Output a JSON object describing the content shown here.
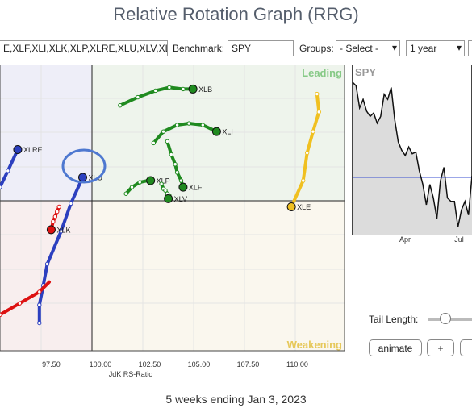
{
  "title": "Relative Rotation Graph (RRG)",
  "controls": {
    "symbols_value": "E,XLF,XLI,XLK,XLP,XLRE,XLU,XLV,XL",
    "benchmark_label": "Benchmark:",
    "benchmark_value": "SPY",
    "groups_label": "Groups:",
    "groups_value": "- Select -",
    "period_value": "1 year"
  },
  "quadrants": {
    "leading": "Leading",
    "weakening": "Weakening"
  },
  "chart_data": {
    "type": "scatter",
    "xlabel": "JdK RS-Ratio",
    "ylabel": "",
    "xlim": [
      94.9,
      112.4
    ],
    "ylim": [
      95.5,
      104.25
    ],
    "center": [
      100,
      100
    ],
    "xticks": [
      "97.50",
      "100.00",
      "102.50",
      "105.00",
      "107.50",
      "110.00"
    ],
    "series": [
      {
        "name": "XLB",
        "color": "#1f8a1f",
        "tail": [
          [
            101.0,
            103.0
          ],
          [
            101.9,
            103.25
          ],
          [
            102.8,
            103.45
          ],
          [
            103.5,
            103.55
          ],
          [
            104.2,
            103.5
          ],
          [
            104.7,
            103.5
          ]
        ]
      },
      {
        "name": "XLI",
        "color": "#1f8a1f",
        "tail": [
          [
            102.7,
            101.85
          ],
          [
            103.2,
            102.2
          ],
          [
            103.9,
            102.4
          ],
          [
            104.5,
            102.45
          ],
          [
            105.2,
            102.4
          ],
          [
            105.9,
            102.2
          ]
        ]
      },
      {
        "name": "XLF",
        "color": "#1f8a1f",
        "tail": [
          [
            103.4,
            101.9
          ],
          [
            103.6,
            101.5
          ],
          [
            103.8,
            101.2
          ],
          [
            103.9,
            100.95
          ],
          [
            104.1,
            100.7
          ],
          [
            104.2,
            100.5
          ]
        ]
      },
      {
        "name": "XLP",
        "color": "#1f8a1f",
        "tail": [
          [
            101.3,
            100.3
          ],
          [
            101.6,
            100.5
          ],
          [
            102.0,
            100.65
          ],
          [
            102.4,
            100.7
          ],
          [
            102.5,
            100.7
          ],
          [
            102.55,
            100.7
          ]
        ]
      },
      {
        "name": "XLV",
        "color": "#1f8a1f",
        "tail": [
          [
            103.1,
            100.6
          ],
          [
            103.2,
            100.45
          ],
          [
            103.3,
            100.4
          ],
          [
            103.4,
            100.3
          ],
          [
            103.5,
            100.25
          ],
          [
            103.45,
            100.15
          ]
        ]
      },
      {
        "name": "XLE",
        "color": "#f0c020",
        "tail": [
          [
            111.0,
            103.35
          ],
          [
            111.1,
            102.8
          ],
          [
            110.8,
            102.2
          ],
          [
            110.5,
            101.55
          ],
          [
            110.3,
            100.7
          ],
          [
            109.7,
            99.9
          ]
        ]
      },
      {
        "name": "XLRE",
        "color": "#2c3fbf",
        "tail": [
          [
            94.9,
            100.5
          ],
          [
            95.3,
            101.0
          ],
          [
            95.8,
            101.65
          ]
        ]
      },
      {
        "name": "XLU",
        "color": "#2c3fbf",
        "tail": [
          [
            96.9,
            96.35
          ],
          [
            96.9,
            96.9
          ],
          [
            97.1,
            97.5
          ],
          [
            97.3,
            98.15
          ],
          [
            98.0,
            99.15
          ],
          [
            98.5,
            100.0
          ],
          [
            99.1,
            100.8
          ]
        ]
      },
      {
        "name": "XLK",
        "color": "#dd1111",
        "tail": [
          [
            97.9,
            99.9
          ],
          [
            97.8,
            99.75
          ],
          [
            97.7,
            99.6
          ],
          [
            97.6,
            99.45
          ],
          [
            97.5,
            99.2
          ]
        ]
      },
      {
        "name": "",
        "color": "#dd1111",
        "tail": [
          [
            94.9,
            96.6
          ],
          [
            95.9,
            96.95
          ],
          [
            96.9,
            97.3
          ],
          [
            97.4,
            97.6
          ]
        ]
      }
    ]
  },
  "benchmark_chart": {
    "symbol": "SPY",
    "x_labels": [
      "Apr",
      "Jul"
    ],
    "values": [
      0.9,
      0.88,
      0.75,
      0.8,
      0.73,
      0.7,
      0.72,
      0.66,
      0.7,
      0.83,
      0.8,
      0.87,
      0.68,
      0.55,
      0.5,
      0.47,
      0.52,
      0.48,
      0.49,
      0.38,
      0.3,
      0.18,
      0.3,
      0.22,
      0.1,
      0.32,
      0.4,
      0.22,
      0.2,
      0.2,
      0.05,
      0.15,
      0.2,
      0.12,
      0.35
    ]
  },
  "tail_length_label": "Tail Length:",
  "buttons": {
    "animate": "animate",
    "plus": "+"
  },
  "footer": "5 weeks ending Jan 3, 2023"
}
